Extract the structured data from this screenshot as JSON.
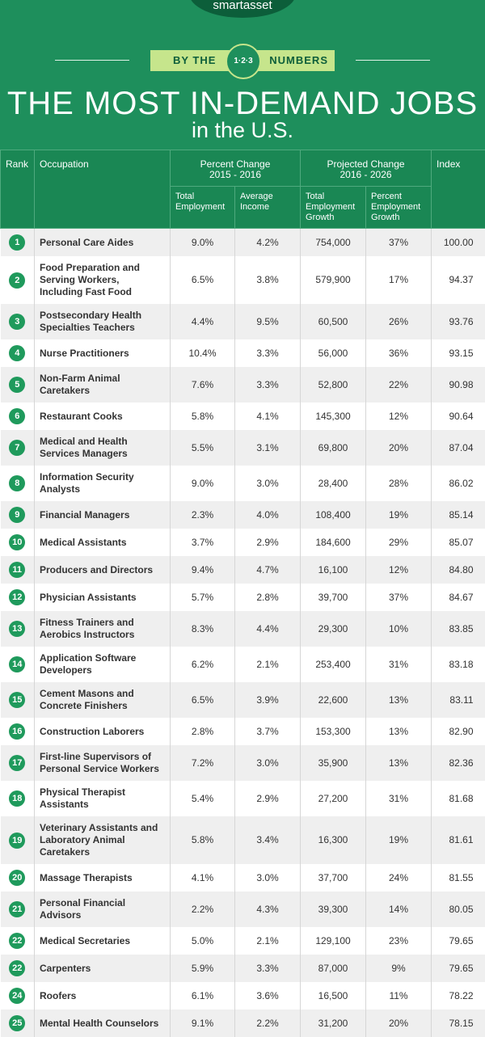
{
  "header": {
    "logo": "smartasset",
    "banner_left": "BY THE",
    "banner_badge": "1·2·3",
    "banner_right": "NUMBERS",
    "title": "THE MOST IN-DEMAND JOBS",
    "subtitle": "in the U.S."
  },
  "table": {
    "columns": {
      "rank": "Rank",
      "occupation": "Occupation",
      "group1": {
        "title": "Percent Change",
        "years": "2015 - 2016",
        "sub": [
          "Total Employment",
          "Average Income"
        ]
      },
      "group2": {
        "title": "Projected Change",
        "years": "2016 - 2026",
        "sub": [
          "Total Employment Growth",
          "Percent Employment Growth"
        ]
      },
      "index": "Index"
    },
    "rows": [
      [
        "1",
        "Personal Care Aides",
        "9.0%",
        "4.2%",
        "754,000",
        "37%",
        "100.00"
      ],
      [
        "2",
        "Food Preparation and Serving Workers, Including Fast Food",
        "6.5%",
        "3.8%",
        "579,900",
        "17%",
        "94.37"
      ],
      [
        "3",
        "Postsecondary Health Specialties Teachers",
        "4.4%",
        "9.5%",
        "60,500",
        "26%",
        "93.76"
      ],
      [
        "4",
        "Nurse Practitioners",
        "10.4%",
        "3.3%",
        "56,000",
        "36%",
        "93.15"
      ],
      [
        "5",
        "Non-Farm Animal Caretakers",
        "7.6%",
        "3.3%",
        "52,800",
        "22%",
        "90.98"
      ],
      [
        "6",
        "Restaurant Cooks",
        "5.8%",
        "4.1%",
        "145,300",
        "12%",
        "90.64"
      ],
      [
        "7",
        "Medical and Health Services Managers",
        "5.5%",
        "3.1%",
        "69,800",
        "20%",
        "87.04"
      ],
      [
        "8",
        "Information Security Analysts",
        "9.0%",
        "3.0%",
        "28,400",
        "28%",
        "86.02"
      ],
      [
        "9",
        "Financial Managers",
        "2.3%",
        "4.0%",
        "108,400",
        "19%",
        "85.14"
      ],
      [
        "10",
        "Medical Assistants",
        "3.7%",
        "2.9%",
        "184,600",
        "29%",
        "85.07"
      ],
      [
        "11",
        "Producers and Directors",
        "9.4%",
        "4.7%",
        "16,100",
        "12%",
        "84.80"
      ],
      [
        "12",
        "Physician Assistants",
        "5.7%",
        "2.8%",
        "39,700",
        "37%",
        "84.67"
      ],
      [
        "13",
        "Fitness Trainers and Aerobics Instructors",
        "8.3%",
        "4.4%",
        "29,300",
        "10%",
        "83.85"
      ],
      [
        "14",
        "Application Software Developers",
        "6.2%",
        "2.1%",
        "253,400",
        "31%",
        "83.18"
      ],
      [
        "15",
        "Cement Masons and Concrete Finishers",
        "6.5%",
        "3.9%",
        "22,600",
        "13%",
        "83.11"
      ],
      [
        "16",
        "Construction Laborers",
        "2.8%",
        "3.7%",
        "153,300",
        "13%",
        "82.90"
      ],
      [
        "17",
        "First-line Supervisors of Personal Service Workers",
        "7.2%",
        "3.0%",
        "35,900",
        "13%",
        "82.36"
      ],
      [
        "18",
        "Physical Therapist Assistants",
        "5.4%",
        "2.9%",
        "27,200",
        "31%",
        "81.68"
      ],
      [
        "19",
        "Veterinary Assistants and Laboratory Animal Caretakers",
        "5.8%",
        "3.4%",
        "16,300",
        "19%",
        "81.61"
      ],
      [
        "20",
        "Massage Therapists",
        "4.1%",
        "3.0%",
        "37,700",
        "24%",
        "81.55"
      ],
      [
        "21",
        "Personal Financial Advisors",
        "2.2%",
        "4.3%",
        "39,300",
        "14%",
        "80.05"
      ],
      [
        "22",
        "Medical Secretaries",
        "5.0%",
        "2.1%",
        "129,100",
        "23%",
        "79.65"
      ],
      [
        "22",
        "Carpenters",
        "5.9%",
        "3.3%",
        "87,000",
        "9%",
        "79.65"
      ],
      [
        "24",
        "Roofers",
        "6.1%",
        "3.6%",
        "16,500",
        "11%",
        "78.22"
      ],
      [
        "25",
        "Mental Health Counselors",
        "9.1%",
        "2.2%",
        "31,200",
        "20%",
        "78.15"
      ]
    ]
  }
}
